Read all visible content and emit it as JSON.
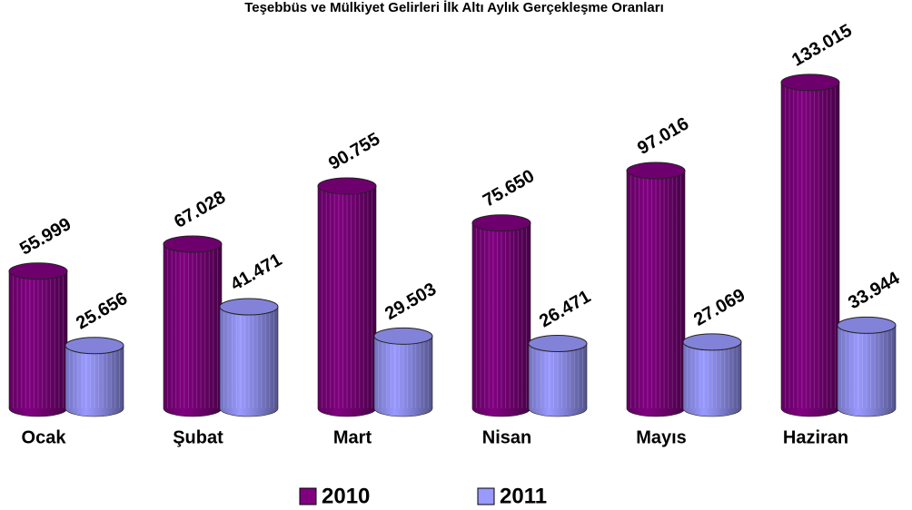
{
  "chart_data": {
    "type": "bar3d",
    "title": "Teşebbüs ve Mülkiyet Gelirleri İlk Altı Aylık Gerçekleşme Oranları",
    "categories": [
      "Ocak",
      "Şubat",
      "Mart",
      "Nisan",
      "Mayıs",
      "Haziran"
    ],
    "series": [
      {
        "name": "2010",
        "color": "#800080",
        "values": [
          55.999,
          67.028,
          90.755,
          75.65,
          97.016,
          133.015
        ],
        "value_labels": [
          "55.999",
          "67.028",
          "90.755",
          "75.650",
          "97.016",
          "133.015"
        ]
      },
      {
        "name": "2011",
        "color": "#9999ff",
        "values": [
          25.656,
          41.471,
          29.503,
          26.471,
          27.069,
          33.944
        ],
        "value_labels": [
          "25.656",
          "41.471",
          "29.503",
          "26.471",
          "27.069",
          "33.944"
        ]
      }
    ]
  }
}
